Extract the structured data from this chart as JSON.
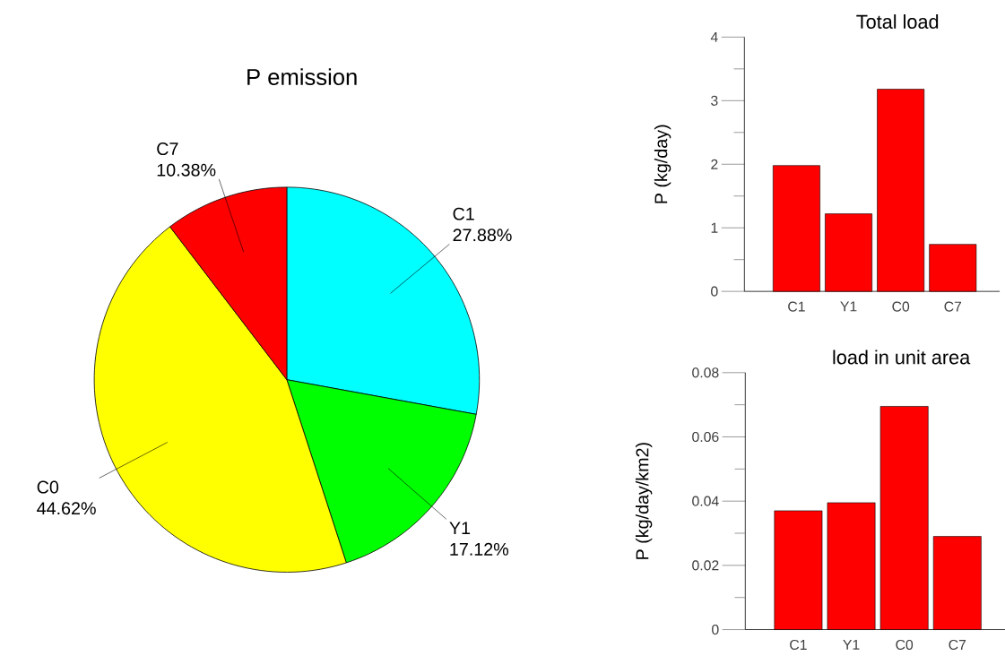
{
  "chart_data": [
    {
      "type": "pie",
      "title": "P emission",
      "categories": [
        "C1",
        "Y1",
        "C0",
        "C7"
      ],
      "values": [
        27.88,
        17.12,
        44.62,
        10.38
      ],
      "colors": [
        "#00ffff",
        "#00ff00",
        "#ffff00",
        "#ff0000"
      ],
      "value_labels": [
        "27.88%",
        "17.12%",
        "44.62%",
        "10.38%"
      ]
    },
    {
      "type": "bar",
      "title": "Total load",
      "ylabel": "P (kg/day)",
      "categories": [
        "C1",
        "Y1",
        "C0",
        "C7"
      ],
      "values": [
        1.98,
        1.22,
        3.18,
        0.74
      ],
      "color": "#ff0000",
      "ylim": [
        0,
        4
      ],
      "yticks": [
        0,
        {
          "value": 0.5,
          "label": null
        },
        1,
        {
          "value": 1.5,
          "label": null
        },
        2,
        {
          "value": 2.5,
          "label": null
        },
        3,
        {
          "value": 3.5,
          "label": null
        },
        4
      ]
    },
    {
      "type": "bar",
      "title": "load in unit area",
      "ylabel": "P (kg/day/km2)",
      "categories": [
        "C1",
        "Y1",
        "C0",
        "C7"
      ],
      "values": [
        0.037,
        0.0395,
        0.0695,
        0.029
      ],
      "color": "#ff0000",
      "ylim": [
        0,
        0.08
      ],
      "yticks": [
        0,
        {
          "value": 0.01,
          "label": null
        },
        0.02,
        {
          "value": 0.03,
          "label": null
        },
        0.04,
        {
          "value": 0.05,
          "label": null
        },
        0.06,
        {
          "value": 0.07,
          "label": null
        },
        0.08
      ]
    }
  ]
}
